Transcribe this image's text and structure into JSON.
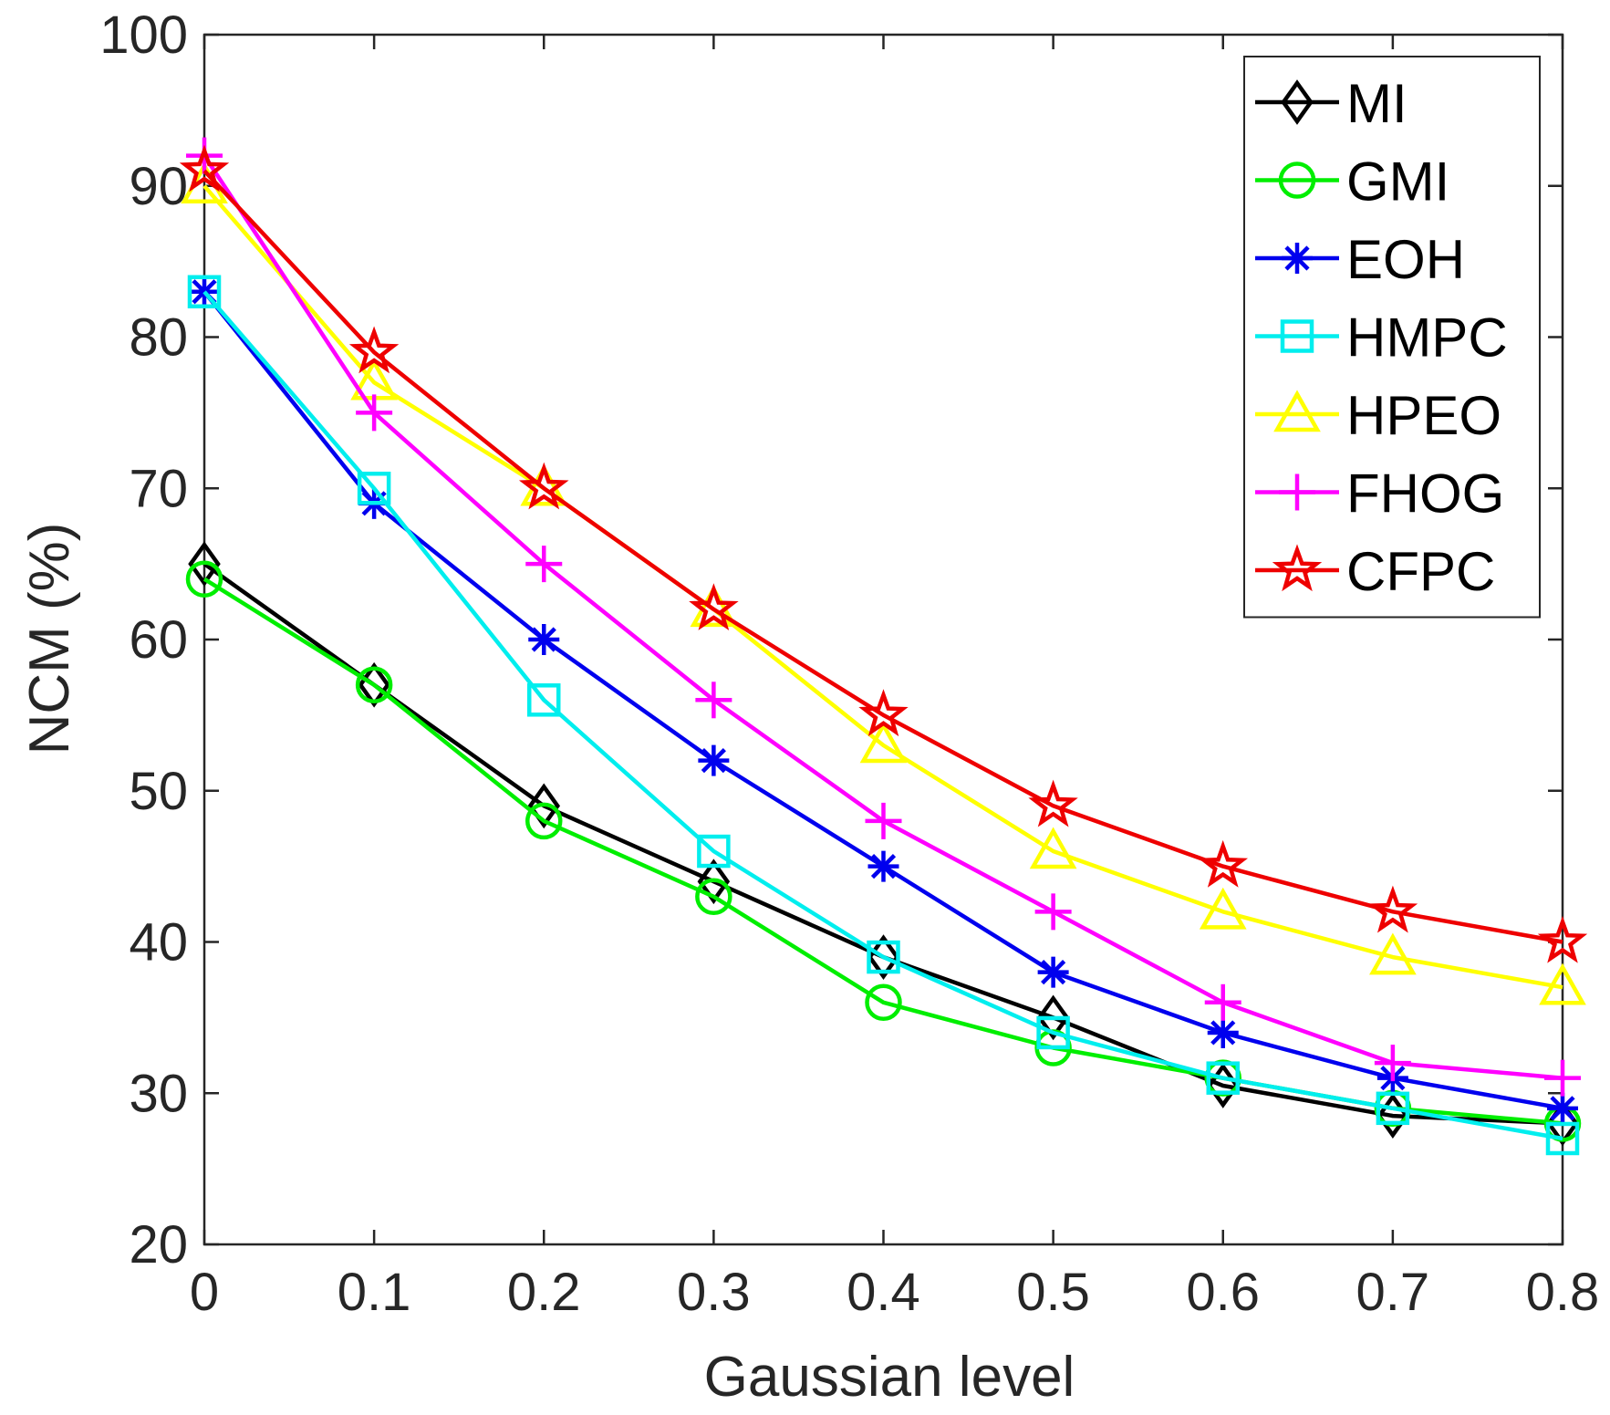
{
  "chart_data": {
    "type": "line",
    "title": "",
    "xlabel": "Gaussian level",
    "ylabel": "NCM (%)",
    "xlim": [
      0,
      0.8
    ],
    "ylim": [
      20,
      100
    ],
    "x": [
      0,
      0.1,
      0.2,
      0.3,
      0.4,
      0.5,
      0.6,
      0.7,
      0.8
    ],
    "x_tick_labels": [
      "0",
      "0.1",
      "0.2",
      "0.3",
      "0.4",
      "0.5",
      "0.6",
      "0.7",
      "0.8"
    ],
    "y_ticks": [
      20,
      30,
      40,
      50,
      60,
      70,
      80,
      90,
      100
    ],
    "y_tick_labels": [
      "20",
      "30",
      "40",
      "50",
      "60",
      "70",
      "80",
      "90",
      "100"
    ],
    "grid": false,
    "legend_position": "top-right",
    "series": [
      {
        "name": "MI",
        "color": "#000000",
        "marker": "diamond",
        "values": [
          65,
          57,
          49,
          44,
          39,
          35,
          30.5,
          28.5,
          28
        ]
      },
      {
        "name": "GMI",
        "color": "#00ee00",
        "marker": "circle",
        "values": [
          64,
          57,
          48,
          43,
          36,
          33,
          31,
          29,
          28
        ]
      },
      {
        "name": "EOH",
        "color": "#0000ee",
        "marker": "asterisk",
        "values": [
          83,
          69,
          60,
          52,
          45,
          38,
          34,
          31,
          29
        ]
      },
      {
        "name": "HMPC",
        "color": "#00eeee",
        "marker": "square",
        "values": [
          83,
          70,
          56,
          46,
          39,
          34,
          31,
          29,
          27
        ]
      },
      {
        "name": "HPEO",
        "color": "#ffff00",
        "marker": "triangle",
        "values": [
          90,
          77,
          70,
          62,
          53,
          46,
          42,
          39,
          37
        ]
      },
      {
        "name": "FHOG",
        "color": "#ff00ff",
        "marker": "plus",
        "values": [
          92,
          75,
          65,
          56,
          48,
          42,
          36,
          32,
          31
        ]
      },
      {
        "name": "CFPC",
        "color": "#ee0000",
        "marker": "star",
        "values": [
          91,
          79,
          70,
          62,
          55,
          49,
          45,
          42,
          40
        ]
      }
    ]
  }
}
